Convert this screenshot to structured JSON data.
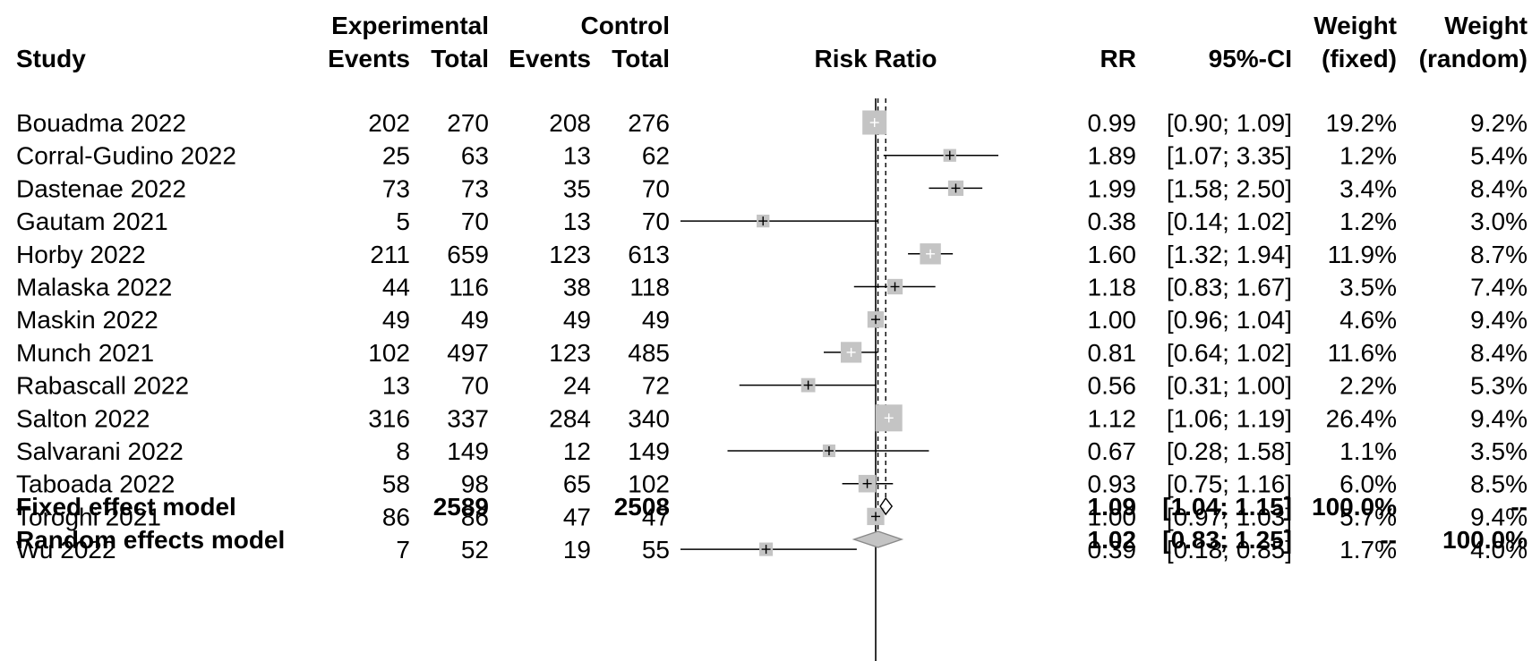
{
  "header": {
    "study": "Study",
    "experimental": "Experimental",
    "control": "Control",
    "events": "Events",
    "total": "Total",
    "risk_ratio": "Risk Ratio",
    "rr": "RR",
    "ci": "95%-CI",
    "weight": "Weight",
    "weight_fixed": "(fixed)",
    "weight_random": "(random)"
  },
  "colors": {
    "box": "#c4c4c4",
    "line": "#000000",
    "diamond": "#c4c4c4"
  },
  "chart_data": {
    "type": "forest",
    "scale": "log",
    "x_reference": 1,
    "fixed_estimate": 1.09,
    "random_estimate": 1.02,
    "studies": [
      {
        "study": "Bouadma 2022",
        "exp_events": "202",
        "exp_total": "270",
        "ctl_events": "208",
        "ctl_total": "276",
        "rr": 0.99,
        "lo": 0.9,
        "hi": 1.09,
        "rr_text": "0.99",
        "ci_text": "[0.90; 1.09]",
        "w_fixed": "19.2%",
        "w_random": "9.2%",
        "weight_fixed": 19.2
      },
      {
        "study": "Corral-Gudino 2022",
        "exp_events": "25",
        "exp_total": "63",
        "ctl_events": "13",
        "ctl_total": "62",
        "rr": 1.89,
        "lo": 1.07,
        "hi": 3.35,
        "rr_text": "1.89",
        "ci_text": "[1.07; 3.35]",
        "w_fixed": "1.2%",
        "w_random": "5.4%",
        "weight_fixed": 1.2
      },
      {
        "study": "Dastenae 2022",
        "exp_events": "73",
        "exp_total": "73",
        "ctl_events": "35",
        "ctl_total": "70",
        "rr": 1.99,
        "lo": 1.58,
        "hi": 2.5,
        "rr_text": "1.99",
        "ci_text": "[1.58; 2.50]",
        "w_fixed": "3.4%",
        "w_random": "8.4%",
        "weight_fixed": 3.4
      },
      {
        "study": "Gautam 2021",
        "exp_events": "5",
        "exp_total": "70",
        "ctl_events": "13",
        "ctl_total": "70",
        "rr": 0.38,
        "lo": 0.14,
        "hi": 1.02,
        "rr_text": "0.38",
        "ci_text": "[0.14; 1.02]",
        "w_fixed": "1.2%",
        "w_random": "3.0%",
        "weight_fixed": 1.2
      },
      {
        "study": "Horby 2022",
        "exp_events": "211",
        "exp_total": "659",
        "ctl_events": "123",
        "ctl_total": "613",
        "rr": 1.6,
        "lo": 1.32,
        "hi": 1.94,
        "rr_text": "1.60",
        "ci_text": "[1.32; 1.94]",
        "w_fixed": "11.9%",
        "w_random": "8.7%",
        "weight_fixed": 11.9
      },
      {
        "study": "Malaska 2022",
        "exp_events": "44",
        "exp_total": "116",
        "ctl_events": "38",
        "ctl_total": "118",
        "rr": 1.18,
        "lo": 0.83,
        "hi": 1.67,
        "rr_text": "1.18",
        "ci_text": "[0.83; 1.67]",
        "w_fixed": "3.5%",
        "w_random": "7.4%",
        "weight_fixed": 3.5
      },
      {
        "study": "Maskin 2022",
        "exp_events": "49",
        "exp_total": "49",
        "ctl_events": "49",
        "ctl_total": "49",
        "rr": 1.0,
        "lo": 0.96,
        "hi": 1.04,
        "rr_text": "1.00",
        "ci_text": "[0.96; 1.04]",
        "w_fixed": "4.6%",
        "w_random": "9.4%",
        "weight_fixed": 4.6
      },
      {
        "study": "Munch 2021",
        "exp_events": "102",
        "exp_total": "497",
        "ctl_events": "123",
        "ctl_total": "485",
        "rr": 0.81,
        "lo": 0.64,
        "hi": 1.02,
        "rr_text": "0.81",
        "ci_text": "[0.64; 1.02]",
        "w_fixed": "11.6%",
        "w_random": "8.4%",
        "weight_fixed": 11.6
      },
      {
        "study": "Rabascall 2022",
        "exp_events": "13",
        "exp_total": "70",
        "ctl_events": "24",
        "ctl_total": "72",
        "rr": 0.56,
        "lo": 0.31,
        "hi": 1.0,
        "rr_text": "0.56",
        "ci_text": "[0.31; 1.00]",
        "w_fixed": "2.2%",
        "w_random": "5.3%",
        "weight_fixed": 2.2
      },
      {
        "study": "Salton 2022",
        "exp_events": "316",
        "exp_total": "337",
        "ctl_events": "284",
        "ctl_total": "340",
        "rr": 1.12,
        "lo": 1.06,
        "hi": 1.19,
        "rr_text": "1.12",
        "ci_text": "[1.06; 1.19]",
        "w_fixed": "26.4%",
        "w_random": "9.4%",
        "weight_fixed": 26.4
      },
      {
        "study": "Salvarani 2022",
        "exp_events": "8",
        "exp_total": "149",
        "ctl_events": "12",
        "ctl_total": "149",
        "rr": 0.67,
        "lo": 0.28,
        "hi": 1.58,
        "rr_text": "0.67",
        "ci_text": "[0.28; 1.58]",
        "w_fixed": "1.1%",
        "w_random": "3.5%",
        "weight_fixed": 1.1
      },
      {
        "study": "Taboada 2022",
        "exp_events": "58",
        "exp_total": "98",
        "ctl_events": "65",
        "ctl_total": "102",
        "rr": 0.93,
        "lo": 0.75,
        "hi": 1.16,
        "rr_text": "0.93",
        "ci_text": "[0.75; 1.16]",
        "w_fixed": "6.0%",
        "w_random": "8.5%",
        "weight_fixed": 6.0
      },
      {
        "study": "Toroghi 2021",
        "exp_events": "86",
        "exp_total": "86",
        "ctl_events": "47",
        "ctl_total": "47",
        "rr": 1.0,
        "lo": 0.97,
        "hi": 1.03,
        "rr_text": "1.00",
        "ci_text": "[0.97; 1.03]",
        "w_fixed": "5.7%",
        "w_random": "9.4%",
        "weight_fixed": 5.7
      },
      {
        "study": "Wu 2022",
        "exp_events": "7",
        "exp_total": "52",
        "ctl_events": "19",
        "ctl_total": "55",
        "rr": 0.39,
        "lo": 0.18,
        "hi": 0.85,
        "rr_text": "0.39",
        "ci_text": "[0.18; 0.85]",
        "w_fixed": "1.7%",
        "w_random": "4.0%",
        "weight_fixed": 1.7
      }
    ],
    "summary": [
      {
        "label": "Fixed effect model",
        "exp_total": "2589",
        "ctl_total": "2508",
        "rr": 1.09,
        "lo": 1.04,
        "hi": 1.15,
        "rr_text": "1.09",
        "ci_text": "[1.04; 1.15]",
        "w_fixed": "100.0%",
        "w_random": "--"
      },
      {
        "label": "Random effects model",
        "exp_total": "",
        "ctl_total": "",
        "rr": 1.02,
        "lo": 0.83,
        "hi": 1.25,
        "rr_text": "1.02",
        "ci_text": "[0.83; 1.25]",
        "w_fixed": "--",
        "w_random": "100.0%"
      }
    ]
  }
}
